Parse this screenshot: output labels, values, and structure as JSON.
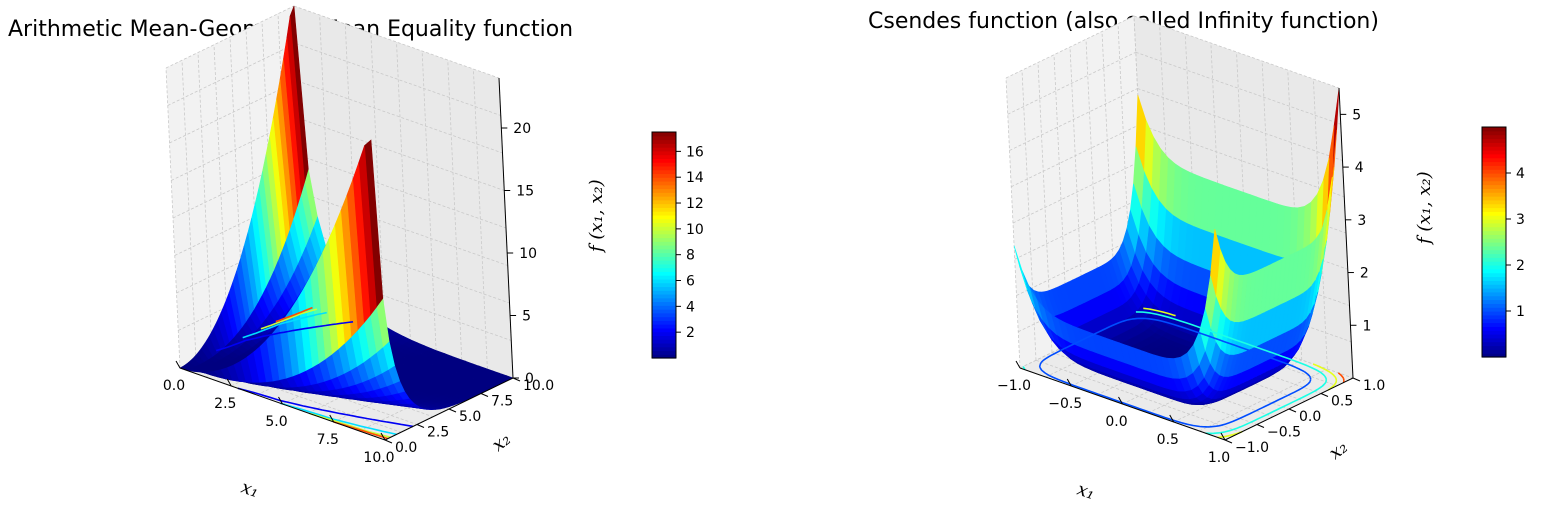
{
  "chart_data": [
    {
      "type": "surface3d",
      "title": "Arithmetic Mean-Geometric Mean Equality function",
      "xlabel": "x₁",
      "ylabel": "x₂",
      "zlabel": "f (x₁, x₂)",
      "xlim": [
        0,
        10
      ],
      "ylim": [
        0,
        10
      ],
      "zlim": [
        0,
        24
      ],
      "x_ticks": [
        "0.0",
        "2.5",
        "5.0",
        "7.5",
        "10.0"
      ],
      "y_ticks": [
        "0.0",
        "2.5",
        "5.0",
        "7.5",
        "10.0"
      ],
      "z_ticks": [
        "0",
        "5",
        "10",
        "15",
        "20"
      ],
      "colorbar": {
        "min": 0,
        "max": 17.5,
        "ticks": [
          "2",
          "4",
          "6",
          "8",
          "10",
          "12",
          "14",
          "16"
        ]
      },
      "colormap": "jet",
      "grid": true,
      "contour_offset": true
    },
    {
      "type": "surface3d",
      "title": "Csendes function (also called Infinity function)",
      "xlabel": "x₁",
      "ylabel": "x₂",
      "zlabel": "f (x₁, x₂)",
      "xlim": [
        -1,
        1
      ],
      "ylim": [
        -1,
        1
      ],
      "zlim": [
        0,
        5.5
      ],
      "x_ticks": [
        "−1.0",
        "−0.5",
        "0.0",
        "0.5",
        "1.0"
      ],
      "y_ticks": [
        "−1.0",
        "−0.5",
        "0.0",
        "0.5",
        "1.0"
      ],
      "z_ticks": [
        "1",
        "2",
        "3",
        "4",
        "5"
      ],
      "colorbar": {
        "min": 0,
        "max": 5,
        "ticks": [
          "1",
          "2",
          "3",
          "4"
        ]
      },
      "colormap": "jet",
      "grid": true,
      "contour_offset": true
    }
  ]
}
